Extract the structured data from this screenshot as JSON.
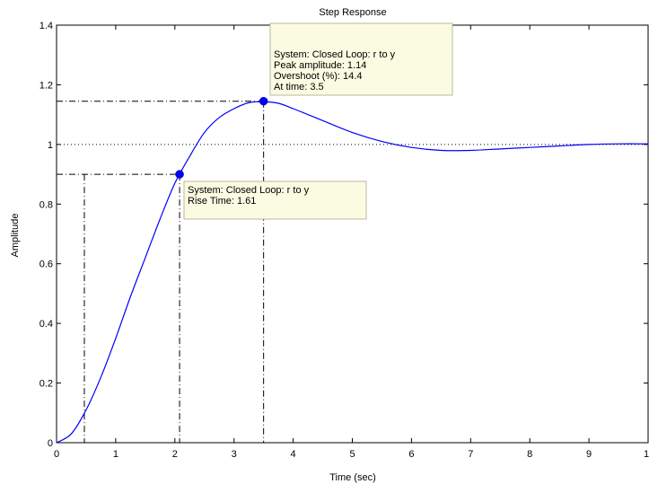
{
  "chart_data": {
    "type": "line",
    "title": "Step Response",
    "xlabel": "Time (sec)",
    "ylabel": "Amplitude",
    "xlim": [
      0,
      10
    ],
    "ylim": [
      0,
      1.4
    ],
    "xticks": [
      "0",
      "1",
      "2",
      "3",
      "4",
      "5",
      "6",
      "7",
      "8",
      "9",
      "1"
    ],
    "yticks": [
      "0",
      "0.2",
      "0.4",
      "0.6",
      "0.8",
      "1",
      "1.2",
      "1.4"
    ],
    "grid": false,
    "reference_line": 1,
    "series": [
      {
        "color": "#0000ff",
        "x": [
          0,
          0.25,
          0.5,
          0.75,
          1,
          1.25,
          1.5,
          1.75,
          2,
          2.25,
          2.5,
          2.75,
          3,
          3.25,
          3.5,
          3.75,
          4,
          4.25,
          4.5,
          5,
          5.5,
          6,
          6.5,
          7,
          7.5,
          8,
          8.5,
          9,
          9.5,
          10
        ],
        "y": [
          0,
          0.03,
          0.11,
          0.22,
          0.35,
          0.49,
          0.62,
          0.75,
          0.87,
          0.96,
          1.04,
          1.09,
          1.12,
          1.14,
          1.143,
          1.138,
          1.12,
          1.1,
          1.08,
          1.04,
          1.01,
          0.99,
          0.98,
          0.98,
          0.985,
          0.99,
          0.995,
          1.0,
          1.002,
          1.002
        ]
      }
    ],
    "markers": [
      {
        "name": "rise",
        "x": 2.08,
        "y": 0.9,
        "guides_x": [
          0.47,
          2.08
        ],
        "lines": [
          "System: Closed Loop: r to y",
          "Rise Time: 1.61"
        ]
      },
      {
        "name": "peak",
        "x": 3.5,
        "y": 1.145,
        "guides_x": [
          3.5
        ],
        "lines": [
          "System: Closed Loop: r to y",
          "Peak amplitude: 1.14",
          "Overshoot (%): 14.4",
          "At time: 3.5"
        ]
      }
    ]
  }
}
